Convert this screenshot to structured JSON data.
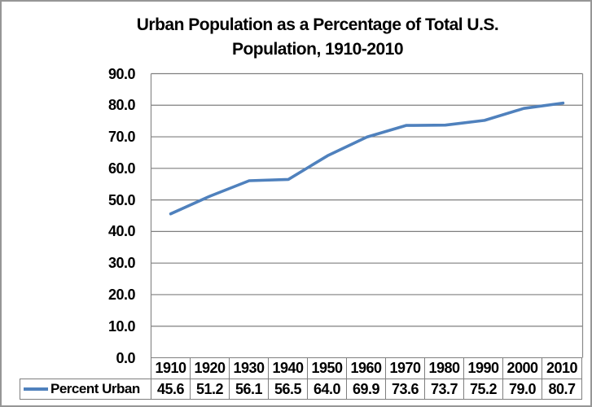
{
  "title": {
    "line1": "Urban Population as a Percentage of Total U.S.",
    "line2": "Population, 1910-2010"
  },
  "chart_data": {
    "type": "line",
    "title": "Urban Population as a Percentage of Total U.S. Population, 1910-2010",
    "categories": [
      "1910",
      "1920",
      "1930",
      "1940",
      "1950",
      "1960",
      "1970",
      "1980",
      "1990",
      "2000",
      "2010"
    ],
    "series": [
      {
        "name": "Percent Urban",
        "values": [
          45.6,
          51.2,
          56.1,
          56.5,
          64.0,
          69.9,
          73.6,
          73.7,
          75.2,
          79.0,
          80.7
        ],
        "color": "#4F81BD"
      }
    ],
    "xlabel": "",
    "ylabel": "",
    "ylim": [
      0,
      90
    ],
    "ytick_step": 10,
    "ytick_format_decimals": 1,
    "grid": true,
    "legend_position": "data-table-left",
    "data_table_shown": true
  },
  "colors": {
    "line": "#4F81BD",
    "grid": "#7f7f7f",
    "plot_border": "#898989",
    "outer_border": "#969696",
    "text": "#000000"
  }
}
